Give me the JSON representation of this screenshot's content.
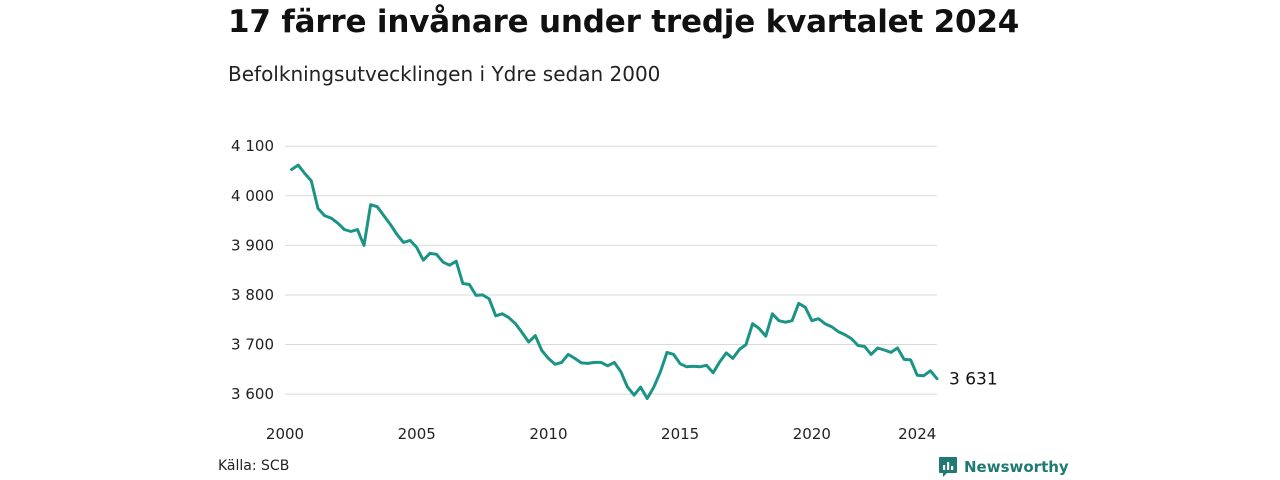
{
  "chart_data": {
    "type": "line",
    "title": "17 färre invånare under tredje kvartalet 2024",
    "subtitle": "Befolkningsutvecklingen i Ydre sedan 2000",
    "xlabel": "",
    "ylabel": "",
    "xlim": [
      2000,
      2024.75
    ],
    "ylim": [
      3580,
      4165
    ],
    "x_ticks": [
      2000,
      2005,
      2010,
      2015,
      2020,
      2024
    ],
    "y_ticks": [
      3600,
      3700,
      3800,
      3900,
      4000,
      4100
    ],
    "y_tick_labels": [
      "3 600",
      "3 700",
      "3 800",
      "3 900",
      "4 000",
      "4 100"
    ],
    "grid": true,
    "line_color": "#1b9486",
    "end_label": "3 631",
    "series": [
      {
        "x": [
          2000.25,
          2000.5,
          2000.75,
          2001,
          2001.25,
          2001.5,
          2001.75,
          2002,
          2002.25,
          2002.5,
          2002.75,
          2003,
          2003.25,
          2003.5,
          2003.75,
          2004,
          2004.25,
          2004.5,
          2004.75,
          2005,
          2005.25,
          2005.5,
          2005.75,
          2006,
          2006.25,
          2006.5,
          2006.75,
          2007,
          2007.25,
          2007.5,
          2007.75,
          2008,
          2008.25,
          2008.5,
          2008.75,
          2009,
          2009.25,
          2009.5,
          2009.75,
          2010,
          2010.25,
          2010.5,
          2010.75,
          2011,
          2011.25,
          2011.5,
          2011.75,
          2012,
          2012.25,
          2012.5,
          2012.75,
          2013,
          2013.25,
          2013.5,
          2013.75,
          2014,
          2014.25,
          2014.5,
          2014.75,
          2015,
          2015.25,
          2015.5,
          2015.75,
          2016,
          2016.25,
          2016.5,
          2016.75,
          2017,
          2017.25,
          2017.5,
          2017.75,
          2018,
          2018.25,
          2018.5,
          2018.75,
          2019,
          2019.25,
          2019.5,
          2019.75,
          2020,
          2020.25,
          2020.5,
          2020.75,
          2021,
          2021.25,
          2021.5,
          2021.75,
          2022,
          2022.25,
          2022.5,
          2022.75,
          2023,
          2023.25,
          2023.5,
          2023.75,
          2024,
          2024.25,
          2024.5,
          2024.75
        ],
        "values": [
          4053,
          4062,
          4045,
          4030,
          3975,
          3960,
          3955,
          3945,
          3932,
          3928,
          3932,
          3900,
          3982,
          3978,
          3960,
          3942,
          3922,
          3906,
          3910,
          3896,
          3870,
          3884,
          3882,
          3866,
          3860,
          3868,
          3823,
          3821,
          3799,
          3800,
          3792,
          3758,
          3762,
          3754,
          3742,
          3724,
          3705,
          3718,
          3688,
          3672,
          3660,
          3664,
          3680,
          3672,
          3663,
          3662,
          3664,
          3664,
          3657,
          3664,
          3645,
          3614,
          3598,
          3614,
          3591,
          3614,
          3645,
          3684,
          3680,
          3661,
          3655,
          3656,
          3655,
          3658,
          3643,
          3665,
          3683,
          3672,
          3690,
          3700,
          3742,
          3732,
          3717,
          3762,
          3748,
          3745,
          3748,
          3783,
          3775,
          3748,
          3752,
          3742,
          3736,
          3726,
          3720,
          3712,
          3698,
          3696,
          3680,
          3693,
          3689,
          3684,
          3693,
          3670,
          3669,
          3638,
          3637,
          3647,
          3631
        ]
      }
    ]
  },
  "footer": {
    "source": "Källa: SCB",
    "brand": "Newsworthy"
  },
  "icons": {
    "brand_icon": "bar-chart-speech-bubble-icon",
    "brand_color": "#1f7a74"
  }
}
